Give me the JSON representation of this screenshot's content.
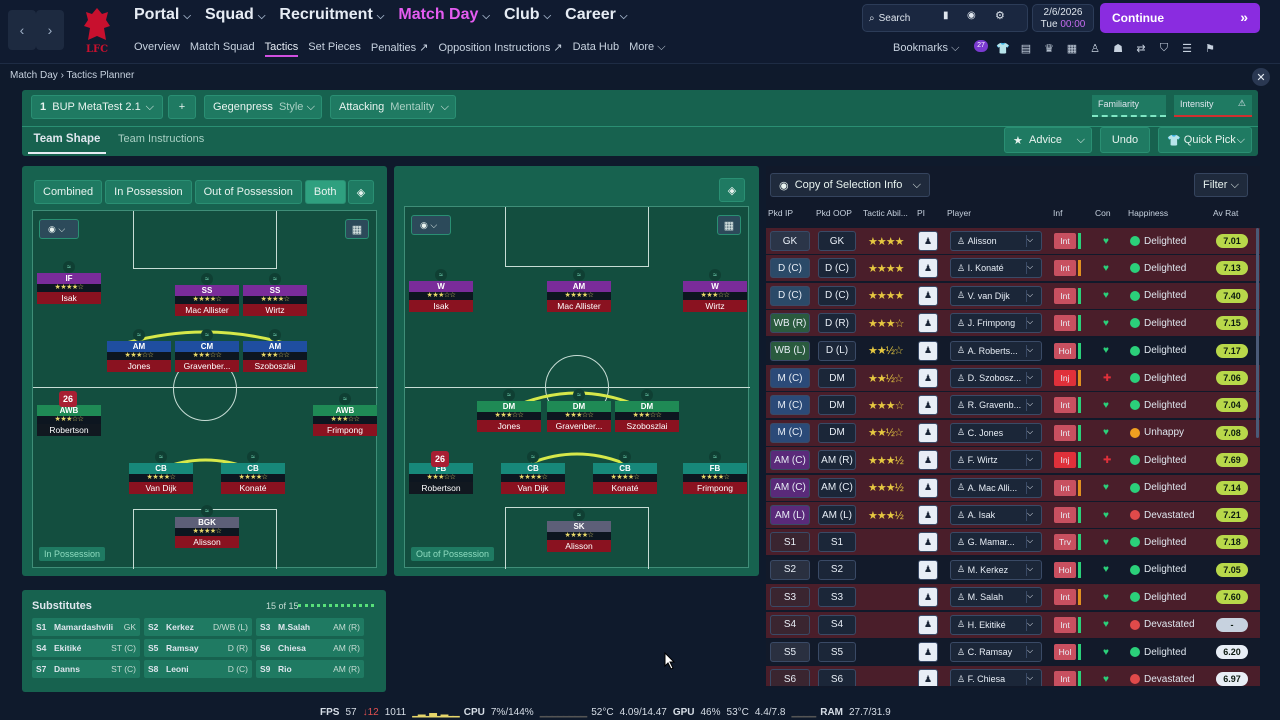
{
  "header": {
    "nav": [
      "Portal",
      "Squad",
      "Recruitment",
      "Match Day",
      "Club",
      "Career"
    ],
    "subnav": [
      "Overview",
      "Match Squad",
      "Tactics",
      "Set Pieces",
      "Penalties",
      "Opposition Instructions",
      "Data Hub",
      "More"
    ],
    "search": "Search",
    "date": "2/6/2026",
    "day": "Tue",
    "time": "00:00",
    "continue": "Continue",
    "bookmarks": "Bookmarks",
    "badge": "27"
  },
  "breadcrumb": [
    "Match Day",
    "Tactics Planner"
  ],
  "tactic": {
    "slot": "1",
    "name": "BUP MetaTest 2.1",
    "style": "Gegenpress",
    "style_label": "Style",
    "mentality": "Attacking",
    "mentality_label": "Mentality",
    "familiarity": "Familiarity",
    "intensity": "Intensity"
  },
  "tabs": [
    "Team Shape",
    "Team Instructions"
  ],
  "actions": {
    "advice": "Advice",
    "undo": "Undo",
    "quick_pick": "Quick Pick"
  },
  "view_toggles": [
    "Combined",
    "In Possession",
    "Out of Possession",
    "Both"
  ],
  "pitch_labels": {
    "in": "In Possession",
    "out": "Out of Possession"
  },
  "in_players": [
    {
      "pos": "IF",
      "name": "Isak",
      "stars": "★★★★☆",
      "bg": "#7a2c9a"
    },
    {
      "pos": "SS",
      "name": "Mac Allister",
      "stars": "★★★★☆",
      "bg": "#7a2c9a"
    },
    {
      "pos": "SS",
      "name": "Wirtz",
      "stars": "★★★★☆",
      "bg": "#7a2c9a"
    },
    {
      "pos": "AM",
      "name": "Jones",
      "stars": "★★★☆☆",
      "bg": "#1f4ea0"
    },
    {
      "pos": "CM",
      "name": "Gravenber...",
      "stars": "★★★☆☆",
      "bg": "#1f4ea0"
    },
    {
      "pos": "AM",
      "name": "Szoboszlai",
      "stars": "★★★☆☆",
      "bg": "#1f4ea0"
    },
    {
      "pos": "AWB",
      "name": "Robertson",
      "stars": "★★★☆☆",
      "bg": "#1f8a55"
    },
    {
      "pos": "AWB",
      "name": "Frimpong",
      "stars": "★★★☆☆",
      "bg": "#1f8a55"
    },
    {
      "pos": "CB",
      "name": "Van Dijk",
      "stars": "★★★★☆",
      "bg": "#17887a"
    },
    {
      "pos": "CB",
      "name": "Konaté",
      "stars": "★★★★☆",
      "bg": "#17887a"
    },
    {
      "pos": "BGK",
      "name": "Alisson",
      "stars": "★★★★☆",
      "bg": "#5d5f78"
    }
  ],
  "out_players": [
    {
      "pos": "W",
      "name": "Isak",
      "stars": "★★★☆☆",
      "bg": "#7a2c9a"
    },
    {
      "pos": "AM",
      "name": "Mac Allister",
      "stars": "★★★★☆",
      "bg": "#7a2c9a"
    },
    {
      "pos": "W",
      "name": "Wirtz",
      "stars": "★★★☆☆",
      "bg": "#7a2c9a"
    },
    {
      "pos": "DM",
      "name": "Jones",
      "stars": "★★★☆☆",
      "bg": "#1f8a55"
    },
    {
      "pos": "DM",
      "name": "Gravenber...",
      "stars": "★★★☆☆",
      "bg": "#1f8a55"
    },
    {
      "pos": "DM",
      "name": "Szoboszlai",
      "stars": "★★★☆☆",
      "bg": "#1f8a55"
    },
    {
      "pos": "FB",
      "name": "Robertson",
      "stars": "★★★☆☆",
      "bg": "#17887a"
    },
    {
      "pos": "CB",
      "name": "Van Dijk",
      "stars": "★★★★☆",
      "bg": "#17887a"
    },
    {
      "pos": "CB",
      "name": "Konaté",
      "stars": "★★★★☆",
      "bg": "#17887a"
    },
    {
      "pos": "FB",
      "name": "Frimpong",
      "stars": "★★★★☆",
      "bg": "#17887a"
    },
    {
      "pos": "SK",
      "name": "Alisson",
      "stars": "★★★★☆",
      "bg": "#5d5f78"
    }
  ],
  "shirt_number": "26",
  "subs": {
    "title": "Substitutes",
    "count": "15 of 15",
    "rows": [
      [
        {
          "n": "S1",
          "name": "Mamardashvili",
          "pos": "GK"
        },
        {
          "n": "S2",
          "name": "Kerkez",
          "pos": "D/WB (L)"
        },
        {
          "n": "S3",
          "name": "M.Salah",
          "pos": "AM (R)"
        }
      ],
      [
        {
          "n": "S4",
          "name": "Ekitiké",
          "pos": "ST (C)"
        },
        {
          "n": "S5",
          "name": "Ramsay",
          "pos": "D (R)"
        },
        {
          "n": "S6",
          "name": "Chiesa",
          "pos": "AM (R)"
        }
      ],
      [
        {
          "n": "S7",
          "name": "Danns",
          "pos": "ST (C)"
        },
        {
          "n": "S8",
          "name": "Leoni",
          "pos": "D (C)"
        },
        {
          "n": "S9",
          "name": "Rio",
          "pos": "AM (R)"
        }
      ]
    ]
  },
  "selection": {
    "copy": "Copy of Selection Info",
    "filter": "Filter",
    "headers": [
      "Pkd IP",
      "Pkd OOP",
      "Tactic Abil...",
      "PI",
      "Player",
      "Inf",
      "Con",
      "Happiness",
      "Av Rat"
    ],
    "rows": [
      {
        "ip": "GK",
        "oop": "GK",
        "stars": "★★★★",
        "player": "Alisson",
        "inf": "Int",
        "happy": "Delighted",
        "rat": "7.01",
        "rowbg": "#4a1e2a",
        "ipbg": "#2b3548"
      },
      {
        "ip": "D (C)",
        "oop": "D (C)",
        "stars": "★★★★",
        "player": "I. Konaté",
        "inf": "Int",
        "happy": "Delighted",
        "rat": "7.13",
        "rowbg": "#4a1e2a",
        "ipbg": "#2b4a68"
      },
      {
        "ip": "D (C)",
        "oop": "D (C)",
        "stars": "★★★★",
        "player": "V. van Dijk",
        "inf": "Int",
        "happy": "Delighted",
        "rat": "7.40",
        "rowbg": "#4a1e2a",
        "ipbg": "#2b4a68"
      },
      {
        "ip": "WB (R)",
        "oop": "D (R)",
        "stars": "★★★☆",
        "player": "J. Frimpong",
        "inf": "Int",
        "happy": "Delighted",
        "rat": "7.15",
        "rowbg": "#4a1e2a",
        "ipbg": "#2a5a3e"
      },
      {
        "ip": "WB (L)",
        "oop": "D (L)",
        "stars": "★★½☆",
        "player": "A. Roberts...",
        "inf": "Hol",
        "happy": "Delighted",
        "rat": "7.17",
        "rowbg": "#121a2a",
        "ipbg": "#2a5a3e"
      },
      {
        "ip": "M (C)",
        "oop": "DM",
        "stars": "★★½☆",
        "player": "D. Szobosz...",
        "inf": "Inj",
        "happy": "Delighted",
        "rat": "7.06",
        "rowbg": "#4a1e2a",
        "ipbg": "#2b4a78"
      },
      {
        "ip": "M (C)",
        "oop": "DM",
        "stars": "★★★☆",
        "player": "R. Gravenb...",
        "inf": "Int",
        "happy": "Delighted",
        "rat": "7.04",
        "rowbg": "#4a1e2a",
        "ipbg": "#2b4a78"
      },
      {
        "ip": "M (C)",
        "oop": "DM",
        "stars": "★★½☆",
        "player": "C. Jones",
        "inf": "Int",
        "happy": "Unhappy",
        "rat": "7.08",
        "rowbg": "#4a1e2a",
        "ipbg": "#2b4a78"
      },
      {
        "ip": "AM (C)",
        "oop": "AM (R)",
        "stars": "★★★½",
        "player": "F. Wirtz",
        "inf": "Inj",
        "happy": "Delighted",
        "rat": "7.69",
        "rowbg": "#4a1e2a",
        "ipbg": "#5a2a7a"
      },
      {
        "ip": "AM (C)",
        "oop": "AM (C)",
        "stars": "★★★½",
        "player": "A. Mac Alli...",
        "inf": "Int",
        "happy": "Delighted",
        "rat": "7.14",
        "rowbg": "#4a1e2a",
        "ipbg": "#5a2a7a"
      },
      {
        "ip": "AM (L)",
        "oop": "AM (L)",
        "stars": "★★★½",
        "player": "A. Isak",
        "inf": "Int",
        "happy": "Devastated",
        "rat": "7.21",
        "rowbg": "#4a1e2a",
        "ipbg": "#5a2a7a"
      },
      {
        "ip": "S1",
        "oop": "S1",
        "stars": "",
        "player": "G. Mamar...",
        "inf": "Trv",
        "happy": "Delighted",
        "rat": "7.18",
        "rowbg": "#4a1e2a",
        "ipbg": "#3a2530"
      },
      {
        "ip": "S2",
        "oop": "S2",
        "stars": "",
        "player": "M. Kerkez",
        "inf": "Hol",
        "happy": "Delighted",
        "rat": "7.05",
        "rowbg": "#121a2a",
        "ipbg": "#2a3040"
      },
      {
        "ip": "S3",
        "oop": "S3",
        "stars": "",
        "player": "M. Salah",
        "inf": "Int",
        "happy": "Delighted",
        "rat": "7.60",
        "rowbg": "#4a1e2a",
        "ipbg": "#3a2530"
      },
      {
        "ip": "S4",
        "oop": "S4",
        "stars": "",
        "player": "H. Ekitiké",
        "inf": "Int",
        "happy": "Devastated",
        "rat": "-",
        "rowbg": "#4a1e2a",
        "ipbg": "#3a2530"
      },
      {
        "ip": "S5",
        "oop": "S5",
        "stars": "",
        "player": "C. Ramsay",
        "inf": "Hol",
        "happy": "Delighted",
        "rat": "6.20",
        "rowbg": "#121a2a",
        "ipbg": "#2a3040"
      },
      {
        "ip": "S6",
        "oop": "S6",
        "stars": "",
        "player": "F. Chiesa",
        "inf": "Int",
        "happy": "Devastated",
        "rat": "6.97",
        "rowbg": "#4a1e2a",
        "ipbg": "#3a2530"
      }
    ]
  },
  "status": {
    "fps_label": "FPS",
    "fps": "57",
    "frames": "12",
    "fraction": "1011",
    "cpu_label": "CPU",
    "cpu": "7%/144%",
    "cpu_temp": "52°C",
    "cpu_clock": "4.09/14.47",
    "gpu_label": "GPU",
    "gpu": "46%",
    "gpu_temp": "53°C",
    "gpu_mem": "4.4/7.8",
    "ram_label": "RAM",
    "ram": "27.7/31.9"
  },
  "colors": {
    "accent": "#8a2ce0",
    "pitch": "#134e3f",
    "panel": "#17624f"
  }
}
